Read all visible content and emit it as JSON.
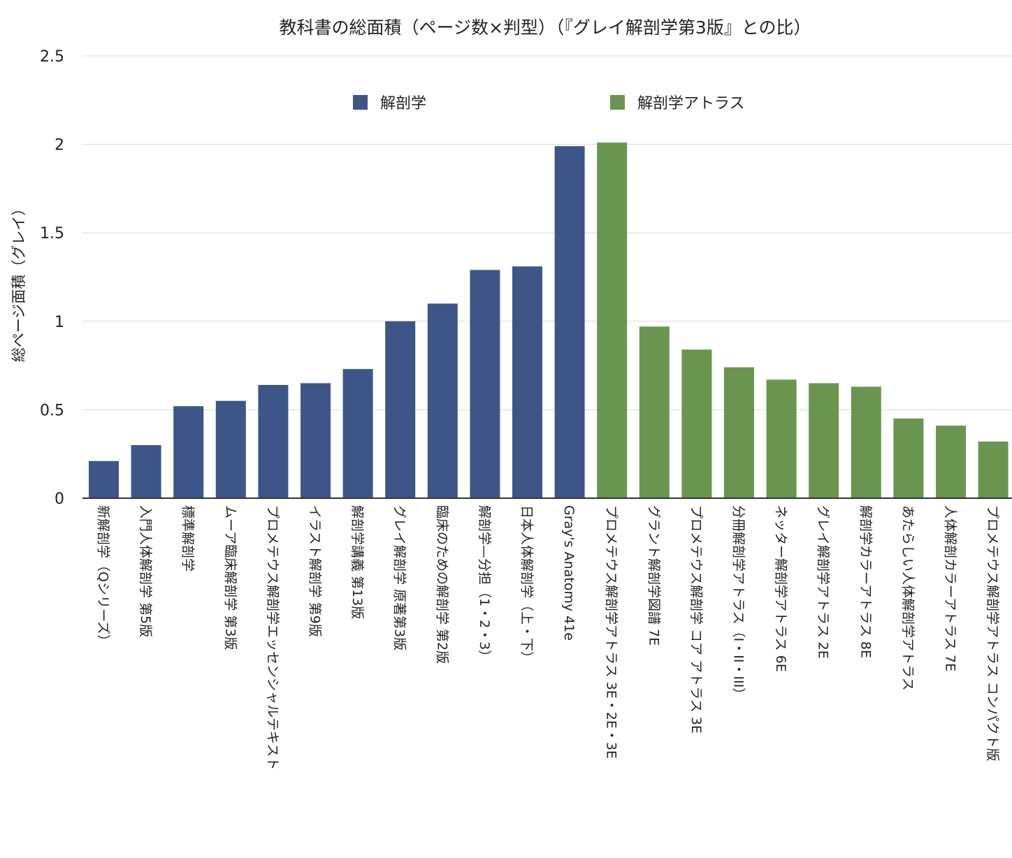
{
  "chart_data": {
    "type": "bar",
    "title": "教科書の総面積（ページ数×判型）（『グレイ解剖学第3版』との比）",
    "xlabel": "",
    "ylabel": "総ページ面積（グレイ）",
    "ylim": [
      0,
      2.5
    ],
    "yticks": [
      "0",
      "0.5",
      "1",
      "1.5",
      "2",
      "2.5"
    ],
    "grid": true,
    "legend_position": "top-center",
    "series": [
      {
        "name": "解剖学",
        "color": "#3d5687",
        "categories": [
          "新解剖学（Qシリーズ）",
          "入門人体解剖学 第5版",
          "標準解剖学",
          "ムーア臨床解剖学 第3版",
          "プロメテウス解剖学エッセンシャルテキスト",
          "イラスト解剖学 第9版",
          "解剖学講義 第13版",
          "グレイ解剖学 原著第3版",
          "臨床のための解剖学 第2版",
          "解剖学—分担（1・2・3）",
          "日本人体解剖学（上・下）",
          "Gray's Anatomy 41e"
        ],
        "values": [
          0.21,
          0.3,
          0.52,
          0.55,
          0.64,
          0.65,
          0.73,
          1.0,
          1.1,
          1.29,
          1.31,
          1.99
        ]
      },
      {
        "name": "解剖学アトラス",
        "color": "#6a9550",
        "categories": [
          "プロメテウス解剖学アトラス 3E・2E・3E",
          "グラント解剖学図譜 7E",
          "プロメテウス解剖学 コア アトラス 3E",
          "分冊解剖学アトラス（I・II・III）",
          "ネッター解剖学アトラス 6E",
          "グレイ解剖学アトラス 2E",
          "解剖学カラーアトラス 8E",
          "あたらしい人体解剖学アトラス",
          "人体解剖カラーアトラス 7E",
          "プロメテウス解剖学アトラス コンパクト版"
        ],
        "values": [
          2.01,
          0.97,
          0.84,
          0.74,
          0.67,
          0.65,
          0.63,
          0.45,
          0.41,
          0.32
        ]
      }
    ]
  }
}
